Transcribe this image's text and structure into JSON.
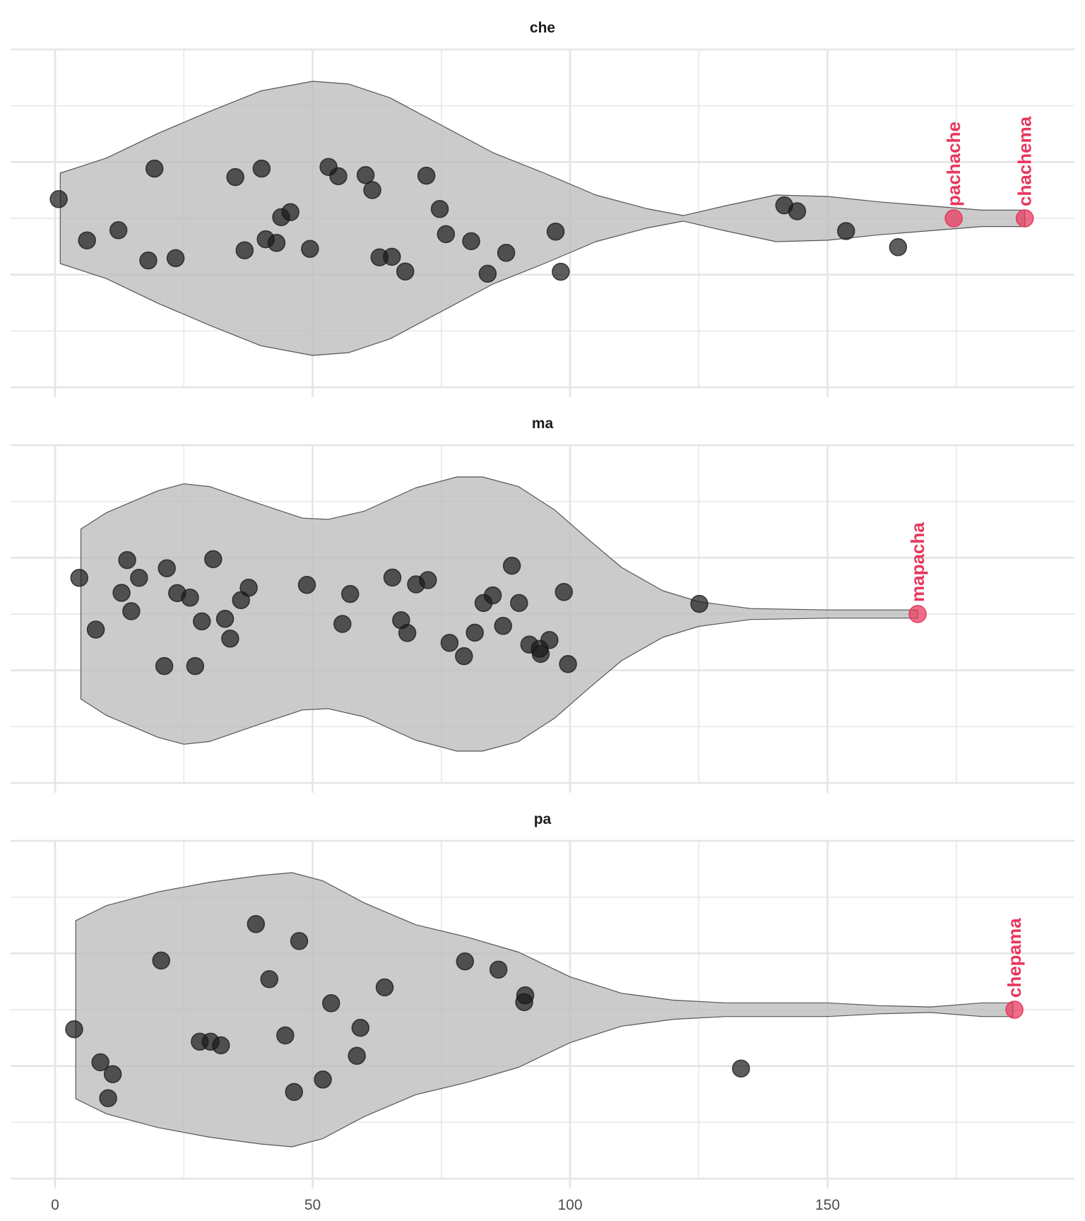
{
  "chart_data": {
    "type": "violin",
    "xlim": [
      -8.5,
      193
    ],
    "x_ticks": [
      0,
      50,
      100,
      150
    ],
    "x_minor_ticks": [
      25,
      75,
      125,
      175
    ],
    "grid": true,
    "colors": {
      "background": "#ffffff",
      "grid": "#e5e5e5",
      "violin_fill": "#bdbdbd",
      "violin_stroke": "#555555",
      "point": "#1a1a1a",
      "highlight": "#e8365d",
      "tick_text": "#4d4d4d",
      "title_text": "#1a1a1a"
    },
    "panels": [
      {
        "title": "che",
        "density": [
          [
            1,
            0.33
          ],
          [
            10,
            0.44
          ],
          [
            20,
            0.62
          ],
          [
            30,
            0.78
          ],
          [
            40,
            0.93
          ],
          [
            50,
            1.0
          ],
          [
            57,
            0.98
          ],
          [
            65,
            0.88
          ],
          [
            75,
            0.68
          ],
          [
            85,
            0.48
          ],
          [
            95,
            0.33
          ],
          [
            105,
            0.17
          ],
          [
            115,
            0.07
          ],
          [
            122,
            0.02
          ],
          [
            130,
            0.09
          ],
          [
            140,
            0.17
          ],
          [
            150,
            0.16
          ],
          [
            160,
            0.12
          ],
          [
            170,
            0.09
          ],
          [
            180,
            0.06
          ],
          [
            188.3,
            0.06
          ]
        ],
        "points": [
          {
            "x": 0.7,
            "y": 0.68
          },
          {
            "x": 6.2,
            "y": -0.78
          },
          {
            "x": 12.3,
            "y": -0.42
          },
          {
            "x": 18.1,
            "y": -1.49
          },
          {
            "x": 19.3,
            "y": 1.76
          },
          {
            "x": 23.4,
            "y": -1.41
          },
          {
            "x": 35.0,
            "y": 1.46
          },
          {
            "x": 36.8,
            "y": -1.13
          },
          {
            "x": 40.1,
            "y": 1.76
          },
          {
            "x": 40.9,
            "y": -0.74
          },
          {
            "x": 43.0,
            "y": -0.87
          },
          {
            "x": 43.9,
            "y": 0.04
          },
          {
            "x": 45.7,
            "y": 0.22
          },
          {
            "x": 49.5,
            "y": -1.08
          },
          {
            "x": 53.1,
            "y": 1.82
          },
          {
            "x": 55.0,
            "y": 1.49
          },
          {
            "x": 60.3,
            "y": 1.53
          },
          {
            "x": 61.6,
            "y": 1.0
          },
          {
            "x": 63.0,
            "y": -1.38
          },
          {
            "x": 65.4,
            "y": -1.36
          },
          {
            "x": 68.0,
            "y": -1.88
          },
          {
            "x": 72.1,
            "y": 1.51
          },
          {
            "x": 74.7,
            "y": 0.33
          },
          {
            "x": 75.9,
            "y": -0.56
          },
          {
            "x": 80.8,
            "y": -0.81
          },
          {
            "x": 84.0,
            "y": -1.96
          },
          {
            "x": 87.6,
            "y": -1.22
          },
          {
            "x": 97.2,
            "y": -0.47
          },
          {
            "x": 98.2,
            "y": -1.89
          },
          {
            "x": 141.6,
            "y": 0.46
          },
          {
            "x": 144.1,
            "y": 0.25
          },
          {
            "x": 153.6,
            "y": -0.45
          },
          {
            "x": 163.7,
            "y": -1.02
          }
        ],
        "highlights": [
          {
            "x": 174.5,
            "y": 0,
            "label": "pachache"
          },
          {
            "x": 188.3,
            "y": 0,
            "label": "chachema"
          }
        ]
      },
      {
        "title": "ma",
        "density": [
          [
            5,
            0.62
          ],
          [
            10,
            0.74
          ],
          [
            20,
            0.9
          ],
          [
            25,
            0.95
          ],
          [
            30,
            0.93
          ],
          [
            40,
            0.8
          ],
          [
            48,
            0.7
          ],
          [
            53,
            0.69
          ],
          [
            60,
            0.75
          ],
          [
            70,
            0.92
          ],
          [
            78,
            1.0
          ],
          [
            83,
            1.0
          ],
          [
            90,
            0.93
          ],
          [
            97,
            0.76
          ],
          [
            104,
            0.53
          ],
          [
            110,
            0.34
          ],
          [
            118,
            0.17
          ],
          [
            125,
            0.09
          ],
          [
            135,
            0.04
          ],
          [
            150,
            0.03
          ],
          [
            160,
            0.03
          ],
          [
            167.5,
            0.03
          ]
        ],
        "points": [
          {
            "x": 4.7,
            "y": 1.28
          },
          {
            "x": 7.9,
            "y": -0.55
          },
          {
            "x": 14.0,
            "y": 1.91
          },
          {
            "x": 14.8,
            "y": 0.1
          },
          {
            "x": 12.9,
            "y": 0.75
          },
          {
            "x": 16.3,
            "y": 1.28
          },
          {
            "x": 21.2,
            "y": -1.84
          },
          {
            "x": 21.7,
            "y": 1.62
          },
          {
            "x": 23.7,
            "y": 0.74
          },
          {
            "x": 26.2,
            "y": 0.58
          },
          {
            "x": 27.2,
            "y": -1.84
          },
          {
            "x": 28.5,
            "y": -0.26
          },
          {
            "x": 30.7,
            "y": 1.94
          },
          {
            "x": 33.0,
            "y": -0.17
          },
          {
            "x": 34.0,
            "y": -0.87
          },
          {
            "x": 36.1,
            "y": 0.49
          },
          {
            "x": 37.6,
            "y": 0.93
          },
          {
            "x": 48.9,
            "y": 1.03
          },
          {
            "x": 55.8,
            "y": -0.35
          },
          {
            "x": 57.3,
            "y": 0.71
          },
          {
            "x": 65.5,
            "y": 1.29
          },
          {
            "x": 67.2,
            "y": -0.22
          },
          {
            "x": 68.4,
            "y": -0.67
          },
          {
            "x": 70.1,
            "y": 1.05
          },
          {
            "x": 72.4,
            "y": 1.2
          },
          {
            "x": 76.6,
            "y": -1.02
          },
          {
            "x": 79.4,
            "y": -1.49
          },
          {
            "x": 81.5,
            "y": -0.66
          },
          {
            "x": 83.2,
            "y": 0.39
          },
          {
            "x": 85.0,
            "y": 0.66
          },
          {
            "x": 87.0,
            "y": -0.42
          },
          {
            "x": 88.7,
            "y": 1.71
          },
          {
            "x": 90.1,
            "y": 0.39
          },
          {
            "x": 92.1,
            "y": -1.08
          },
          {
            "x": 94.1,
            "y": -1.23
          },
          {
            "x": 94.3,
            "y": -1.41
          },
          {
            "x": 96.0,
            "y": -0.92
          },
          {
            "x": 98.8,
            "y": 0.78
          },
          {
            "x": 99.6,
            "y": -1.77
          },
          {
            "x": 125.1,
            "y": 0.36
          }
        ],
        "highlights": [
          {
            "x": 167.5,
            "y": 0,
            "label": "mapacha"
          }
        ]
      },
      {
        "title": "pa",
        "density": [
          [
            4,
            0.65
          ],
          [
            10,
            0.76
          ],
          [
            20,
            0.86
          ],
          [
            30,
            0.93
          ],
          [
            40,
            0.98
          ],
          [
            46,
            1.0
          ],
          [
            52,
            0.94
          ],
          [
            60,
            0.78
          ],
          [
            70,
            0.62
          ],
          [
            80,
            0.53
          ],
          [
            90,
            0.42
          ],
          [
            100,
            0.24
          ],
          [
            110,
            0.12
          ],
          [
            120,
            0.07
          ],
          [
            130,
            0.05
          ],
          [
            140,
            0.05
          ],
          [
            150,
            0.05
          ],
          [
            160,
            0.03
          ],
          [
            170,
            0.02
          ],
          [
            180,
            0.05
          ],
          [
            186,
            0.05
          ]
        ],
        "points": [
          {
            "x": 3.7,
            "y": -0.69
          },
          {
            "x": 8.8,
            "y": -1.86
          },
          {
            "x": 10.3,
            "y": -3.13
          },
          {
            "x": 11.2,
            "y": -2.28
          },
          {
            "x": 20.6,
            "y": 1.74
          },
          {
            "x": 28.1,
            "y": -1.13
          },
          {
            "x": 30.2,
            "y": -1.13
          },
          {
            "x": 32.2,
            "y": -1.26
          },
          {
            "x": 39.0,
            "y": 3.03
          },
          {
            "x": 41.6,
            "y": 1.08
          },
          {
            "x": 44.7,
            "y": -0.91
          },
          {
            "x": 46.4,
            "y": -2.91
          },
          {
            "x": 47.4,
            "y": 2.43
          },
          {
            "x": 52.0,
            "y": -2.47
          },
          {
            "x": 53.6,
            "y": 0.23
          },
          {
            "x": 58.6,
            "y": -1.63
          },
          {
            "x": 59.3,
            "y": -0.64
          },
          {
            "x": 64.0,
            "y": 0.79
          },
          {
            "x": 79.6,
            "y": 1.71
          },
          {
            "x": 86.1,
            "y": 1.42
          },
          {
            "x": 91.1,
            "y": 0.27
          },
          {
            "x": 91.3,
            "y": 0.51
          },
          {
            "x": 133.2,
            "y": -2.08
          }
        ],
        "highlights": [
          {
            "x": 186.3,
            "y": 0,
            "label": "chepama"
          }
        ]
      }
    ]
  }
}
